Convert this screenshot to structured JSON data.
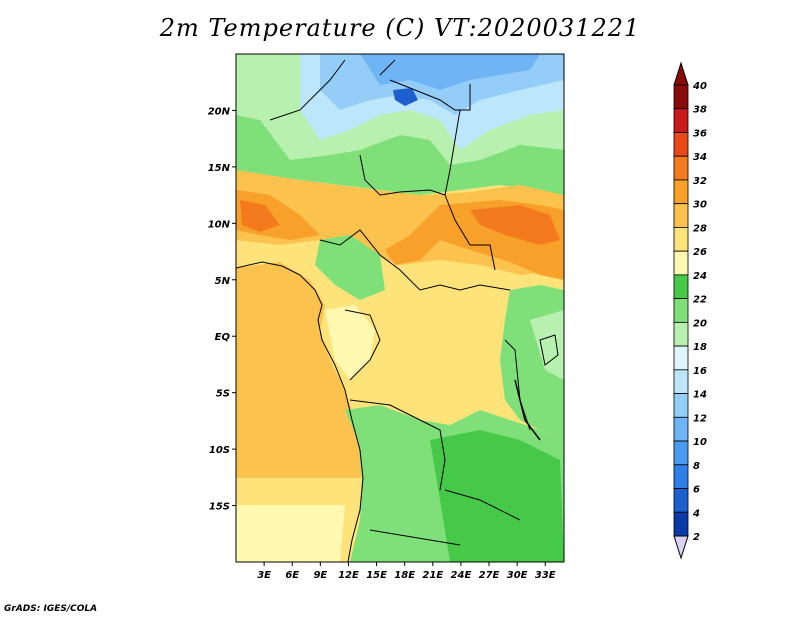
{
  "title": "2m Temperature (C) VT:2020031221",
  "footer": "GrADS: IGES/COLA",
  "map": {
    "lat_labels": [
      "20N",
      "15N",
      "10N",
      "5N",
      "EQ",
      "5S",
      "10S",
      "15S"
    ],
    "lat_values": [
      20,
      15,
      10,
      5,
      0,
      -5,
      -10,
      -15
    ],
    "lon_labels": [
      "3E",
      "6E",
      "9E",
      "12E",
      "15E",
      "18E",
      "21E",
      "24E",
      "27E",
      "30E",
      "33E"
    ],
    "lon_values": [
      3,
      6,
      9,
      12,
      15,
      18,
      21,
      24,
      27,
      30,
      33
    ],
    "lon_range": [
      0,
      35
    ],
    "lat_range": [
      -20,
      25
    ]
  },
  "colorbar": {
    "levels": [
      "2",
      "4",
      "6",
      "8",
      "10",
      "12",
      "14",
      "16",
      "18",
      "20",
      "22",
      "24",
      "26",
      "28",
      "30",
      "32",
      "34",
      "36",
      "38",
      "40"
    ],
    "colors": [
      "#1a1a7a",
      "#0a3aa8",
      "#1e5fd0",
      "#2e7fe8",
      "#4a9bf0",
      "#6fb4f5",
      "#93cdf8",
      "#bde6fb",
      "#e0f6fc",
      "#b8f0b0",
      "#7fe07a",
      "#46c848",
      "#fff8b0",
      "#fde37a",
      "#fbc24d",
      "#f7a02a",
      "#f47a1e",
      "#ea4a1a",
      "#c81a1a",
      "#8a0a0a"
    ],
    "below_color": "#d9d2f2",
    "above_color": "#8a0a0a"
  }
}
